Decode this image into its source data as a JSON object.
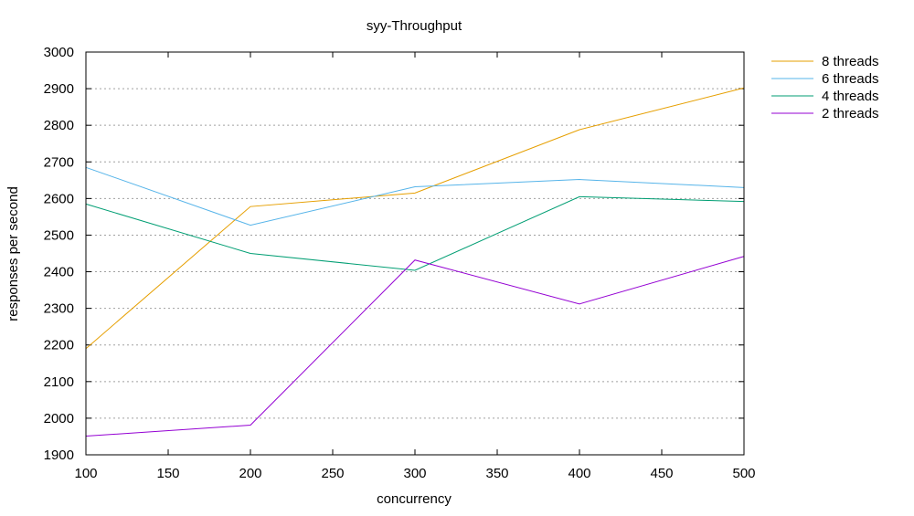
{
  "chart_data": {
    "type": "line",
    "title": "syy-Throughput",
    "xlabel": "concurrency",
    "ylabel": "responses per second",
    "xlim": [
      100,
      500
    ],
    "ylim": [
      1900,
      3000
    ],
    "xticks": [
      100,
      150,
      200,
      250,
      300,
      350,
      400,
      450,
      500
    ],
    "yticks": [
      1900,
      2000,
      2100,
      2200,
      2300,
      2400,
      2500,
      2600,
      2700,
      2800,
      2900,
      3000
    ],
    "grid": "horizontal dotted",
    "legend_position": "top-right outside",
    "x": [
      100,
      200,
      300,
      400,
      500
    ],
    "series": [
      {
        "name": "8 threads",
        "color": "#e69f00",
        "values": [
          2190,
          2578,
          2615,
          2788,
          2902
        ]
      },
      {
        "name": "6 threads",
        "color": "#56b4e9",
        "values": [
          2685,
          2527,
          2632,
          2652,
          2630
        ]
      },
      {
        "name": "4 threads",
        "color": "#009e73",
        "values": [
          2585,
          2450,
          2404,
          2605,
          2592
        ]
      },
      {
        "name": "2 threads",
        "color": "#9400d3",
        "values": [
          1951,
          1981,
          2432,
          2312,
          2442
        ]
      }
    ]
  }
}
